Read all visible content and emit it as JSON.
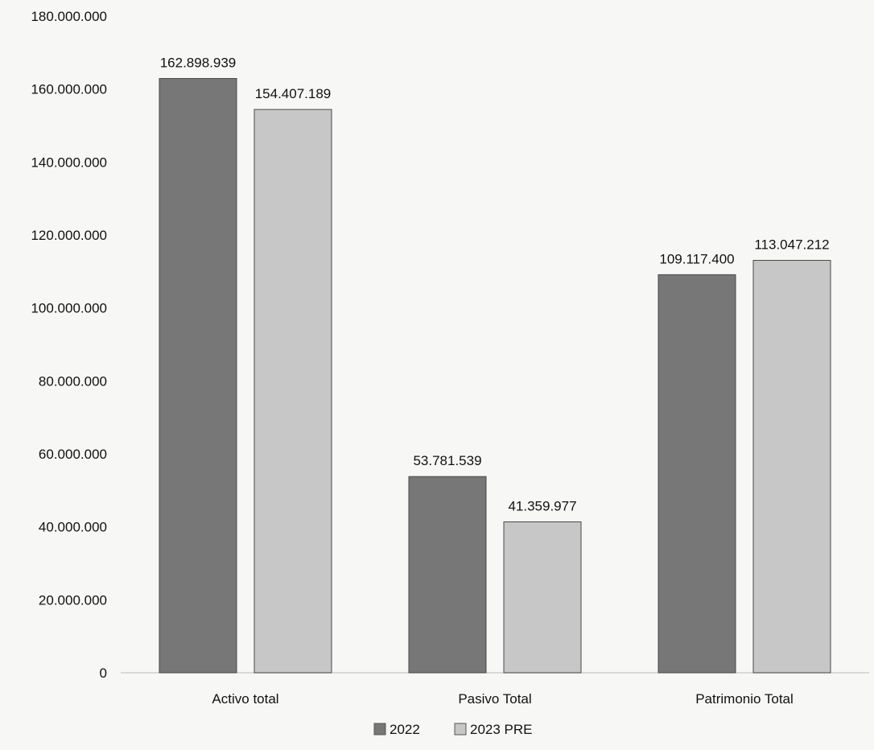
{
  "chart_data": {
    "type": "bar",
    "categories": [
      "Activo total",
      "Pasivo Total",
      "Patrimonio Total"
    ],
    "series": [
      {
        "name": "2022",
        "values": [
          162898939,
          53781539,
          109117400
        ],
        "labels": [
          "162.898.939",
          "53.781.539",
          "109.117.400"
        ],
        "color": "#777777"
      },
      {
        "name": "2023 PRE",
        "values": [
          154407189,
          41359977,
          113047212
        ],
        "labels": [
          "154.407.189",
          "41.359.977",
          "113.047.212"
        ],
        "color": "#c7c7c7"
      }
    ],
    "ylim": [
      0,
      180000000
    ],
    "y_ticks": [
      0,
      20000000,
      40000000,
      60000000,
      80000000,
      100000000,
      120000000,
      140000000,
      160000000,
      180000000
    ],
    "y_tick_labels": [
      "0",
      "20.000.000",
      "40.000.000",
      "60.000.000",
      "80.000.000",
      "100.000.000",
      "120.000.000",
      "140.000.000",
      "160.000.000",
      "180.000.000"
    ],
    "grid": false,
    "legend_position": "bottom"
  }
}
